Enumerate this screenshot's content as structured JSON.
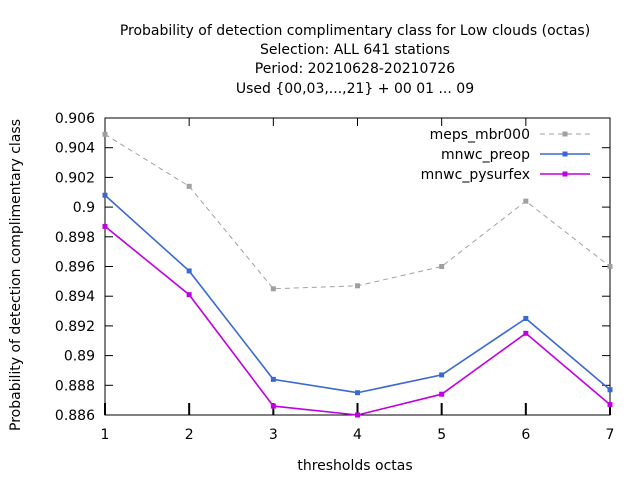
{
  "chart_data": {
    "type": "line",
    "title_lines": [
      "Probability of detection complimentary class  for Low clouds (octas)",
      "Selection: ALL    641 stations",
      "Period: 20210628-20210726",
      "Used {00,03,...,21} + 00 01 ... 09"
    ],
    "xlabel": "thresholds octas",
    "ylabel": "Probability of detection complimentary class",
    "x": [
      1,
      2,
      3,
      4,
      5,
      6,
      7
    ],
    "xlim": [
      1,
      7
    ],
    "ylim": [
      0.886,
      0.906
    ],
    "yticks": [
      0.886,
      0.888,
      0.89,
      0.892,
      0.894,
      0.896,
      0.898,
      0.9,
      0.902,
      0.904,
      0.906
    ],
    "ytick_labels": [
      "0.886",
      "0.888",
      "0.89",
      "0.892",
      "0.894",
      "0.896",
      "0.898",
      "0.9",
      "0.902",
      "0.904",
      "0.906"
    ],
    "xtick_labels": [
      "1",
      "2",
      "3",
      "4",
      "5",
      "6",
      "7"
    ],
    "legend_position": "top-right",
    "series": [
      {
        "name": "meps_mbr000",
        "color": "#a0a0a0",
        "dashed": true,
        "values": [
          0.9049,
          0.9014,
          0.8945,
          0.8947,
          0.896,
          0.9004,
          0.896
        ]
      },
      {
        "name": "mnwc_preop",
        "color": "#3a68d0",
        "dashed": false,
        "values": [
          0.9008,
          0.8957,
          0.8884,
          0.8875,
          0.8887,
          0.8925,
          0.8877
        ]
      },
      {
        "name": "mnwc_pysurfex",
        "color": "#c000e0",
        "dashed": false,
        "values": [
          0.8987,
          0.8941,
          0.8866,
          0.886,
          0.8874,
          0.8915,
          0.8867
        ]
      }
    ]
  }
}
